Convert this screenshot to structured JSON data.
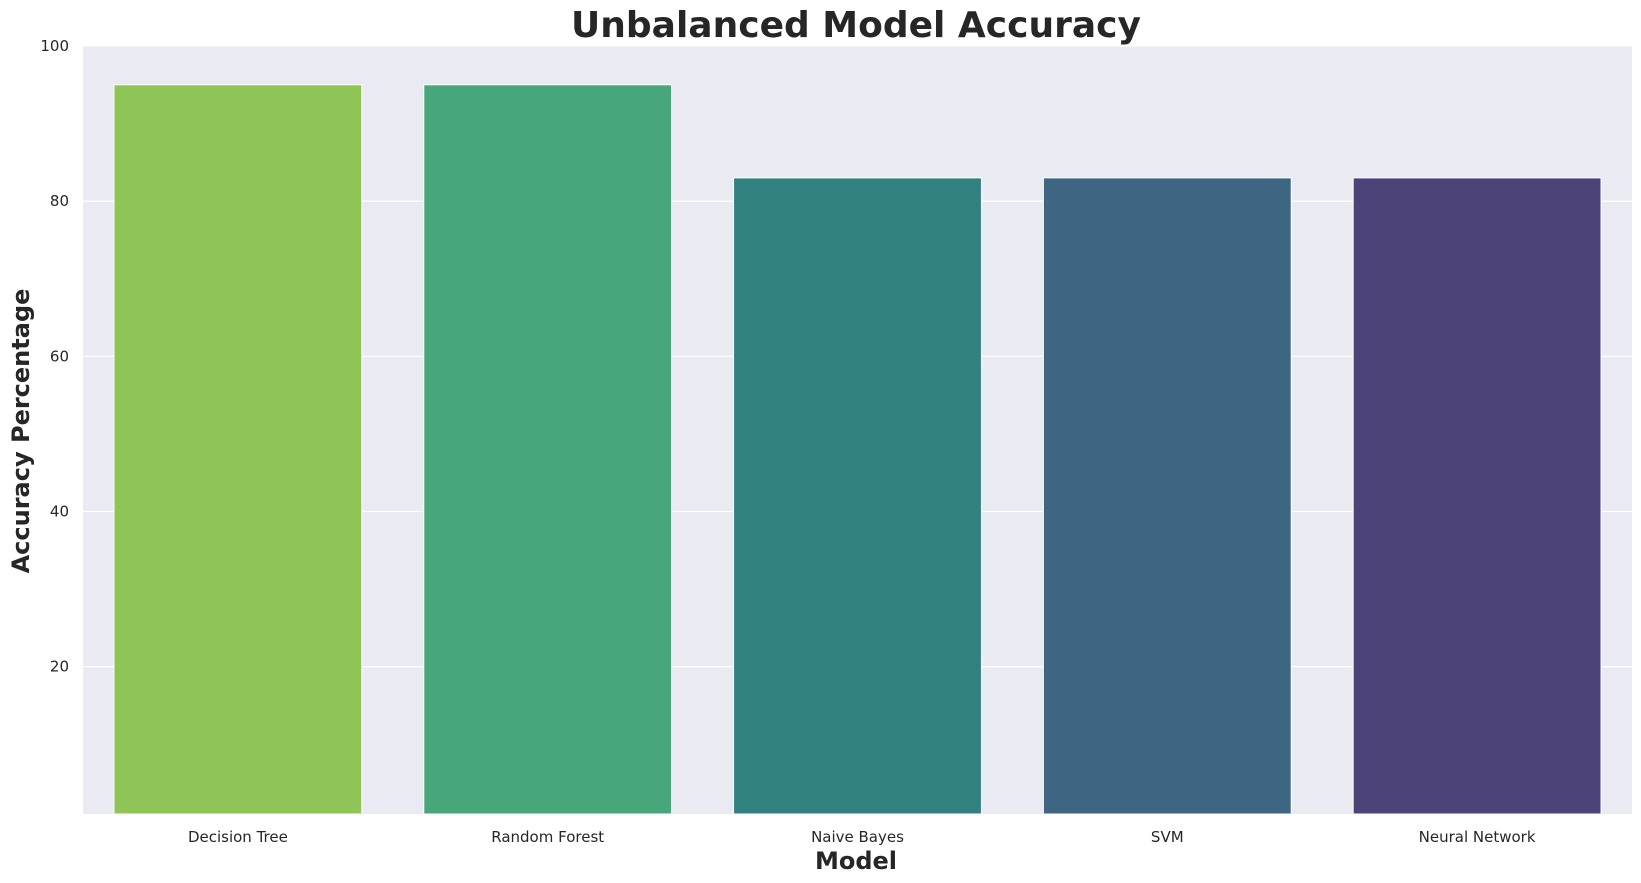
{
  "chart_data": {
    "type": "bar",
    "title": "Unbalanced Model Accuracy",
    "xlabel": "Model",
    "ylabel": "Accuracy Percentage",
    "categories": [
      "Decision Tree",
      "Random Forest",
      "Naive Bayes",
      "SVM",
      "Neural Network"
    ],
    "values": [
      95,
      95,
      83,
      83,
      83
    ],
    "colors": [
      "#8fc556",
      "#48a77a",
      "#318180",
      "#3e6582",
      "#4c4379"
    ],
    "ylim": [
      1,
      100
    ],
    "yticks": [
      20,
      40,
      60,
      80,
      100
    ],
    "grid": true,
    "legend": "none",
    "background": "#eaeaf2"
  }
}
